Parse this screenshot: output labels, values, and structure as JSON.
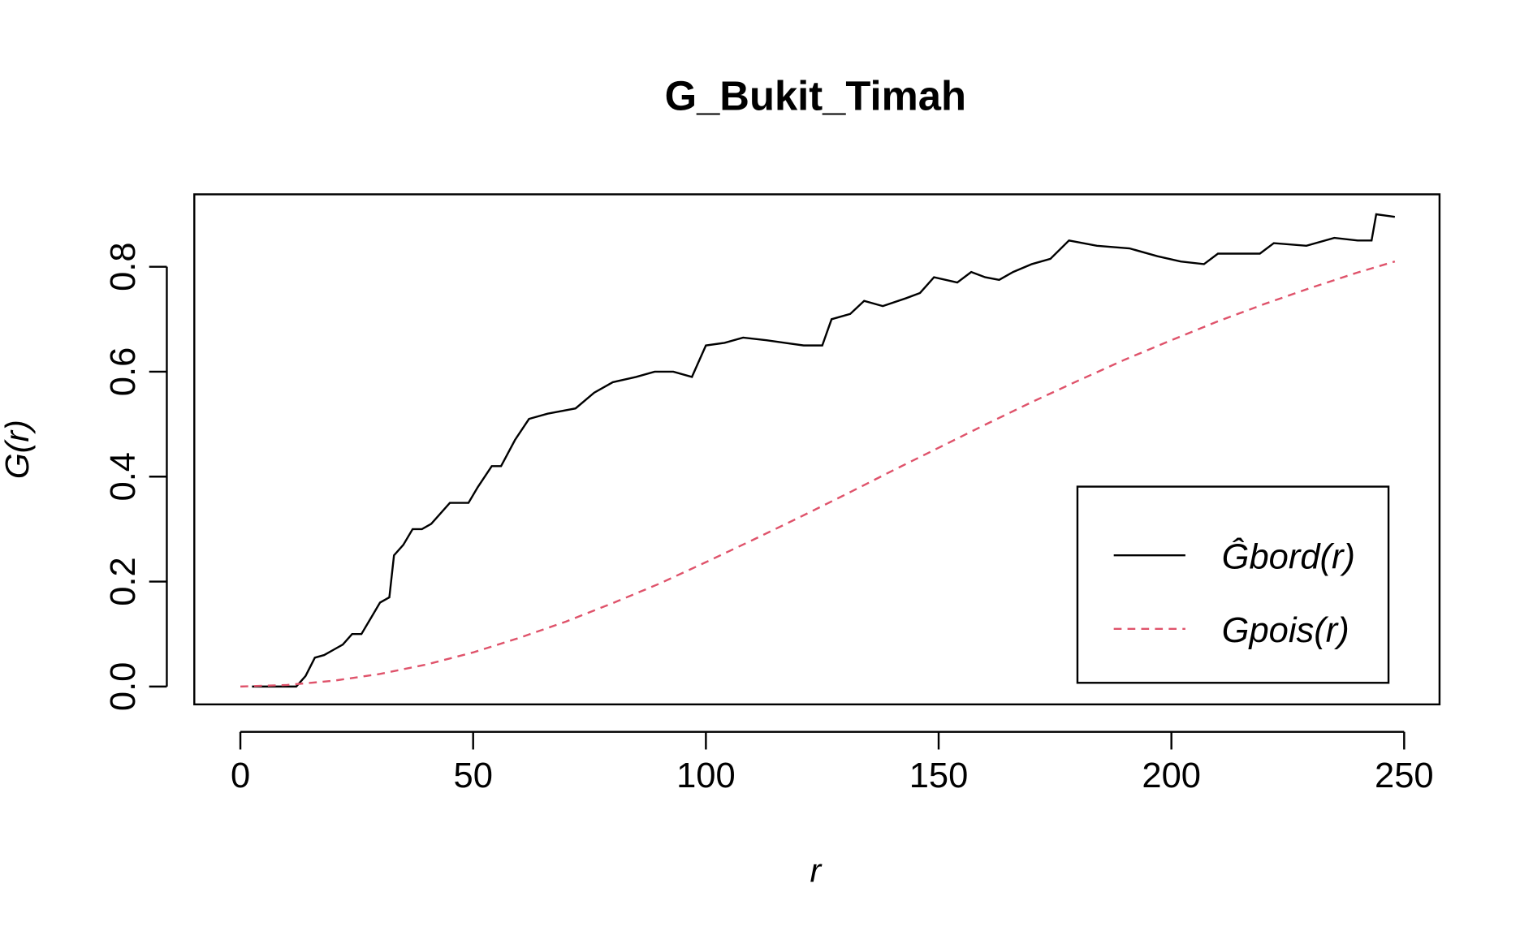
{
  "chart_data": {
    "type": "line",
    "title": "G_Bukit_Timah",
    "x_label": "r",
    "y_label": "G(r)",
    "xlim": [
      -9.9,
      257.6
    ],
    "ylim": [
      -0.034,
      0.938
    ],
    "xticks": [
      0,
      50,
      100,
      150,
      200,
      250
    ],
    "yticks": [
      {
        "value": 0,
        "label": "0.0"
      },
      0.2,
      0.4,
      0.6,
      0.8
    ],
    "legend_position": "bottom-right",
    "series": [
      {
        "name": "Ĝbord(r)",
        "color": "#000000",
        "dash": false,
        "x": [
          2.5,
          12,
          14,
          16,
          18,
          20,
          22,
          24,
          26,
          28,
          30,
          32,
          33,
          35,
          37,
          39,
          41,
          45,
          49,
          51,
          54,
          56,
          59,
          62,
          66,
          72,
          76,
          80,
          85,
          89,
          93,
          97,
          100,
          104,
          108,
          113,
          117,
          121,
          125,
          127,
          131,
          134,
          138,
          143,
          146,
          149,
          154,
          157,
          160,
          163,
          166,
          170,
          174,
          178,
          184,
          191,
          197,
          202,
          207,
          210,
          219,
          222,
          229,
          235,
          240,
          243,
          244,
          248
        ],
        "values": [
          0,
          0,
          0.02,
          0.055,
          0.06,
          0.07,
          0.08,
          0.1,
          0.1,
          0.13,
          0.16,
          0.17,
          0.25,
          0.27,
          0.3,
          0.3,
          0.31,
          0.35,
          0.35,
          0.38,
          0.42,
          0.42,
          0.47,
          0.51,
          0.52,
          0.53,
          0.56,
          0.58,
          0.59,
          0.6,
          0.6,
          0.59,
          0.65,
          0.655,
          0.665,
          0.66,
          0.655,
          0.65,
          0.65,
          0.7,
          0.71,
          0.735,
          0.725,
          0.74,
          0.75,
          0.78,
          0.77,
          0.79,
          0.78,
          0.775,
          0.79,
          0.805,
          0.815,
          0.85,
          0.84,
          0.835,
          0.82,
          0.81,
          0.805,
          0.825,
          0.825,
          0.845,
          0.84,
          0.855,
          0.85,
          0.85,
          0.9,
          0.895
        ]
      },
      {
        "name": "Gpois(r)",
        "color": "#DF536B",
        "dash": true,
        "x": [
          0,
          10,
          20,
          30,
          40,
          50,
          60,
          70,
          80,
          90,
          100,
          110,
          120,
          130,
          140,
          150,
          160,
          170,
          180,
          190,
          200,
          210,
          220,
          230,
          240,
          248
        ],
        "values": [
          0,
          0.003,
          0.011,
          0.024,
          0.042,
          0.065,
          0.093,
          0.124,
          0.159,
          0.196,
          0.237,
          0.279,
          0.322,
          0.366,
          0.411,
          0.455,
          0.499,
          0.542,
          0.583,
          0.623,
          0.66,
          0.696,
          0.729,
          0.76,
          0.789,
          0.81
        ]
      }
    ]
  }
}
